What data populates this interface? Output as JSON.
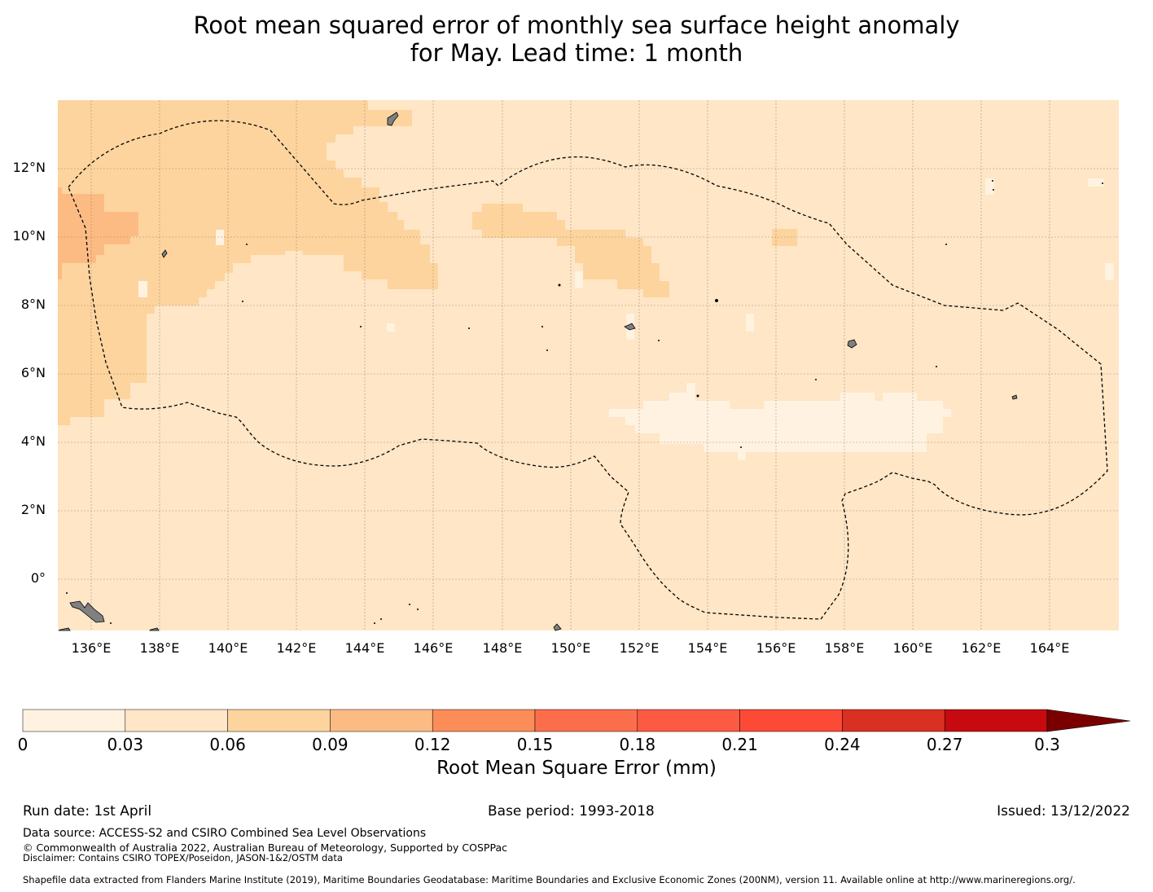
{
  "title_line1": "Root mean squared error of monthly sea surface height anomaly",
  "title_line2": "for May. Lead time: 1 month",
  "map": {
    "lat_labels": [
      "12°N",
      "10°N",
      "8°N",
      "6°N",
      "4°N",
      "2°N",
      "0°"
    ],
    "lon_labels": [
      "136°E",
      "138°E",
      "140°E",
      "142°E",
      "144°E",
      "146°E",
      "148°E",
      "150°E",
      "152°E",
      "154°E",
      "156°E",
      "158°E",
      "160°E",
      "162°E",
      "164°E"
    ],
    "region": "Exclusive Economic Zone boundary (dashed)",
    "colors": {
      "land": "#808080",
      "base": "#fee6c6",
      "light": "#fff2e0",
      "medium": "#fdd49e",
      "dark": "#fdbb84"
    }
  },
  "colorbar": {
    "ticks": [
      "0",
      "0.03",
      "0.06",
      "0.09",
      "0.12",
      "0.15",
      "0.18",
      "0.21",
      "0.24",
      "0.27",
      "0.3"
    ],
    "colors": [
      "#fff2e0",
      "#fee6c6",
      "#fdd49e",
      "#fdbb84",
      "#fc8d59",
      "#fc6e4b",
      "#fc5a43",
      "#fc4a37",
      "#d93022",
      "#c70a10",
      "#b00000",
      "#7a0000"
    ],
    "label": "Root Mean Square Error (mm)"
  },
  "footer": {
    "run_date": "Run date: 1st April",
    "base_period": "Base period: 1993-2018",
    "issued": "Issued: 13/12/2022",
    "data_source": "Data source: ACCESS-S2 and CSIRO Combined Sea Level Observations",
    "copyright": "© Commonwealth of Australia 2022, Australian Bureau of Meteorology, Supported by COSPPac",
    "disclaimer": "Disclaimer: Contains CSIRO TOPEX/Poseidon, JASON-1&2/OSTM data",
    "shapefile": "Shapefile data extracted from Flanders Marine Institute (2019), Maritime Boundaries Geodatabase: Maritime Boundaries and Exclusive Economic Zones (200NM), version 11. Available online at http://www.marineregions.org/."
  }
}
